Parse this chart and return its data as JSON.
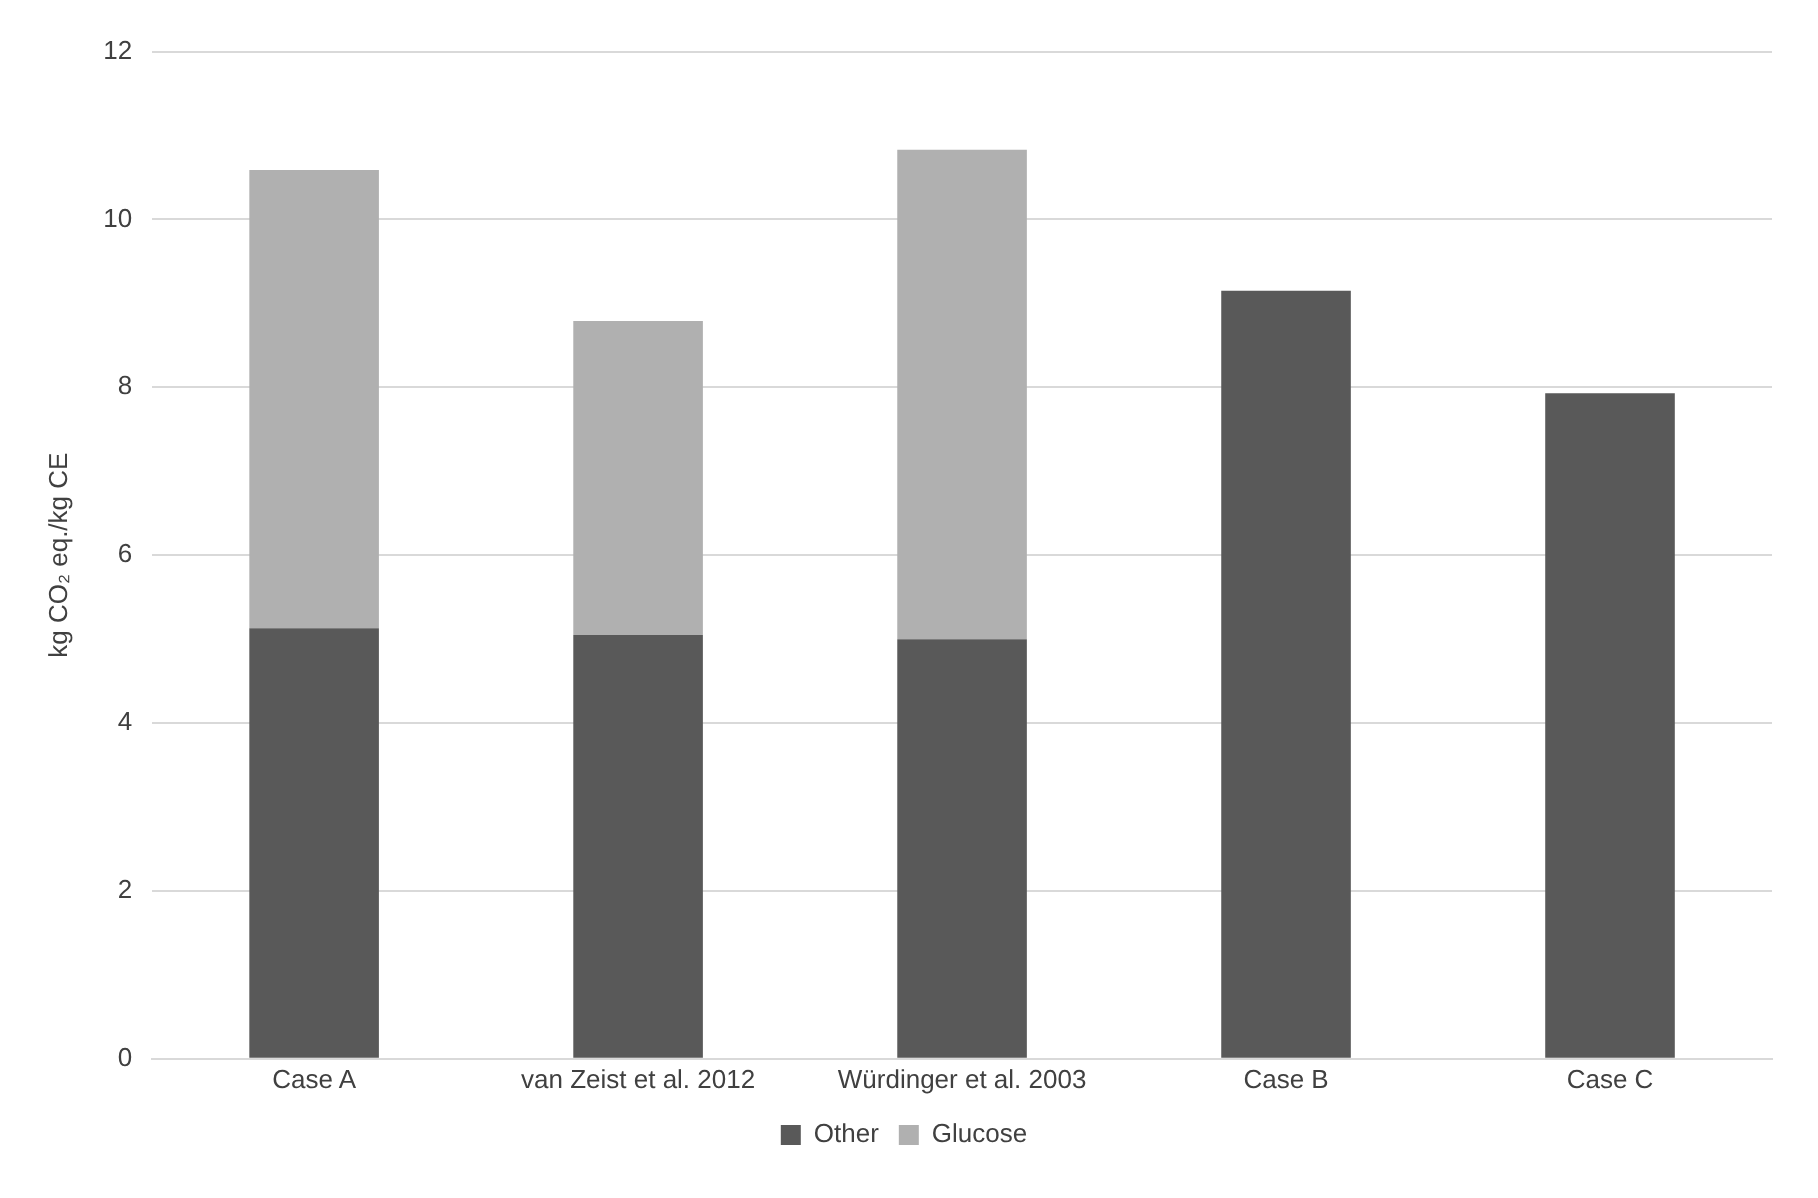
{
  "chart_data": {
    "type": "bar",
    "stacked": true,
    "ylabel": "kg CO₂ eq./kg CE",
    "categories": [
      "Case A",
      "van Zeist et al. 2012",
      "Würdinger et al. 2003",
      "Case B",
      "Case C"
    ],
    "series": [
      {
        "name": "Other",
        "color": "#595959",
        "values": [
          5.13,
          5.05,
          5.0,
          9.15,
          7.93
        ]
      },
      {
        "name": "Glucose",
        "color": "#b0b0b0",
        "values": [
          5.46,
          3.74,
          5.83,
          null,
          null
        ]
      }
    ],
    "ylim": [
      0,
      12
    ],
    "yticks": [
      0,
      2,
      4,
      6,
      8,
      10,
      12
    ],
    "grid": "y",
    "legend": "bottom"
  }
}
